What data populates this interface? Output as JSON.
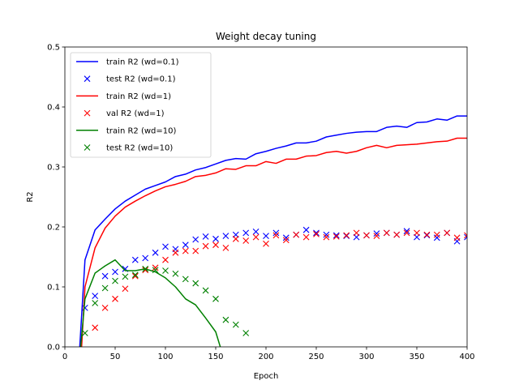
{
  "chart_data": {
    "type": "line",
    "title": "Weight decay tuning",
    "xlabel": "Epoch",
    "ylabel": "R2",
    "xlim": [
      0,
      400
    ],
    "ylim": [
      0,
      0.5
    ],
    "xticks": [
      "0",
      "50",
      "100",
      "150",
      "200",
      "250",
      "300",
      "350",
      "400"
    ],
    "yticks": [
      "0.0",
      "0.1",
      "0.2",
      "0.3",
      "0.4",
      "0.5"
    ],
    "grid": false,
    "legend": "top-left",
    "series": [
      {
        "name": "train R2 (wd=0.1)",
        "style": "line",
        "color": "#0000ff",
        "x": [
          13,
          20,
          30,
          40,
          50,
          60,
          70,
          80,
          90,
          100,
          110,
          120,
          130,
          140,
          150,
          160,
          170,
          180,
          190,
          200,
          210,
          220,
          230,
          240,
          250,
          260,
          270,
          280,
          290,
          300,
          310,
          320,
          330,
          340,
          350,
          360,
          370,
          380,
          390,
          400
        ],
        "y": [
          -0.05,
          0.145,
          0.195,
          0.213,
          0.23,
          0.243,
          0.253,
          0.263,
          0.269,
          0.275,
          0.284,
          0.288,
          0.295,
          0.299,
          0.305,
          0.311,
          0.314,
          0.313,
          0.322,
          0.326,
          0.331,
          0.335,
          0.34,
          0.34,
          0.343,
          0.35,
          0.353,
          0.356,
          0.358,
          0.359,
          0.359,
          0.366,
          0.368,
          0.366,
          0.374,
          0.375,
          0.38,
          0.378,
          0.385,
          0.385
        ]
      },
      {
        "name": "test R2 (wd=0.1)",
        "style": "marker",
        "color": "#0000ff",
        "x": [
          20,
          30,
          40,
          50,
          60,
          70,
          80,
          90,
          100,
          110,
          120,
          130,
          140,
          150,
          160,
          170,
          180,
          190,
          200,
          210,
          220,
          230,
          240,
          250,
          260,
          270,
          280,
          290,
          300,
          310,
          320,
          330,
          340,
          350,
          360,
          370,
          380,
          390,
          400
        ],
        "y": [
          0.065,
          0.085,
          0.118,
          0.125,
          0.13,
          0.145,
          0.148,
          0.157,
          0.167,
          0.163,
          0.17,
          0.179,
          0.184,
          0.18,
          0.185,
          0.187,
          0.19,
          0.192,
          0.185,
          0.19,
          0.182,
          0.187,
          0.195,
          0.19,
          0.187,
          0.186,
          0.185,
          0.183,
          0.186,
          0.189,
          0.19,
          0.187,
          0.193,
          0.183,
          0.186,
          0.182,
          0.19,
          0.176,
          0.183
        ]
      },
      {
        "name": "train R2 (wd=1)",
        "style": "line",
        "color": "#ff0000",
        "x": [
          15,
          20,
          30,
          40,
          50,
          60,
          70,
          80,
          90,
          100,
          110,
          120,
          130,
          140,
          150,
          160,
          170,
          180,
          190,
          200,
          210,
          220,
          230,
          240,
          250,
          260,
          270,
          280,
          290,
          300,
          310,
          320,
          330,
          340,
          350,
          360,
          370,
          380,
          390,
          400
        ],
        "y": [
          -0.05,
          0.1,
          0.165,
          0.198,
          0.218,
          0.233,
          0.243,
          0.252,
          0.26,
          0.267,
          0.271,
          0.276,
          0.284,
          0.286,
          0.29,
          0.297,
          0.296,
          0.302,
          0.302,
          0.309,
          0.306,
          0.313,
          0.313,
          0.318,
          0.319,
          0.324,
          0.326,
          0.323,
          0.326,
          0.332,
          0.336,
          0.332,
          0.336,
          0.337,
          0.338,
          0.34,
          0.342,
          0.343,
          0.348,
          0.348
        ]
      },
      {
        "name": "val R2 (wd=1)",
        "style": "marker",
        "color": "#ff0000",
        "x": [
          30,
          40,
          50,
          60,
          70,
          80,
          90,
          100,
          110,
          120,
          130,
          140,
          150,
          160,
          170,
          180,
          190,
          200,
          210,
          220,
          230,
          240,
          250,
          260,
          270,
          280,
          290,
          300,
          310,
          320,
          330,
          340,
          350,
          360,
          370,
          380,
          390,
          400
        ],
        "y": [
          0.032,
          0.065,
          0.08,
          0.097,
          0.118,
          0.128,
          0.132,
          0.145,
          0.157,
          0.16,
          0.16,
          0.168,
          0.17,
          0.165,
          0.18,
          0.177,
          0.183,
          0.172,
          0.186,
          0.178,
          0.187,
          0.183,
          0.188,
          0.183,
          0.184,
          0.186,
          0.19,
          0.186,
          0.185,
          0.19,
          0.187,
          0.19,
          0.19,
          0.187,
          0.187,
          0.19,
          0.182,
          0.186
        ]
      },
      {
        "name": "train R2 (wd=10)",
        "style": "line",
        "color": "#008000",
        "x": [
          13,
          20,
          30,
          40,
          50,
          60,
          70,
          80,
          90,
          100,
          110,
          120,
          130,
          140,
          150,
          160
        ],
        "y": [
          -0.05,
          0.08,
          0.123,
          0.135,
          0.145,
          0.127,
          0.127,
          0.13,
          0.125,
          0.115,
          0.1,
          0.08,
          0.07,
          0.048,
          0.025,
          -0.03
        ]
      },
      {
        "name": "test R2 (wd=10)",
        "style": "marker",
        "color": "#008000",
        "x": [
          20,
          30,
          40,
          50,
          60,
          70,
          80,
          90,
          100,
          110,
          120,
          130,
          140,
          150,
          160,
          170,
          180
        ],
        "y": [
          0.023,
          0.073,
          0.098,
          0.11,
          0.117,
          0.12,
          0.13,
          0.128,
          0.127,
          0.122,
          0.113,
          0.106,
          0.094,
          0.08,
          0.045,
          0.037,
          0.023
        ]
      }
    ]
  }
}
